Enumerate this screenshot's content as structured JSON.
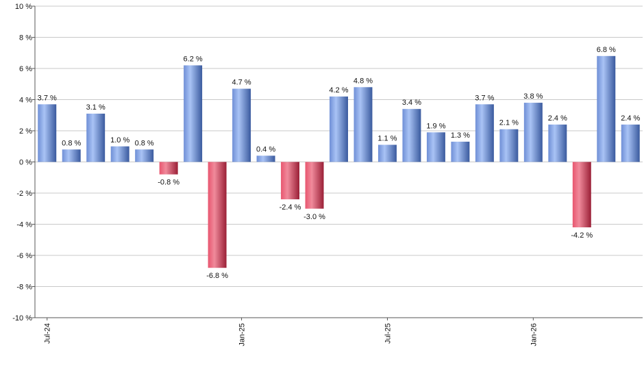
{
  "chart_data": {
    "type": "bar",
    "ylim": [
      -10,
      10
    ],
    "y_ticks": [
      10,
      8,
      6,
      4,
      2,
      0,
      -2,
      -4,
      -6,
      -8,
      -10
    ],
    "y_unit": "%",
    "grid": true,
    "x_tick_labels": [
      {
        "label": "Jul-24",
        "index": 0
      },
      {
        "label": "Jan-25",
        "index": 8
      },
      {
        "label": "Jul-25",
        "index": 14
      },
      {
        "label": "Jan-26",
        "index": 20
      }
    ],
    "values": [
      3.7,
      0.8,
      3.1,
      1.0,
      0.8,
      -0.8,
      6.2,
      -6.8,
      4.7,
      0.4,
      -2.4,
      -3.0,
      4.2,
      4.8,
      1.1,
      3.4,
      1.9,
      1.3,
      3.7,
      2.1,
      3.8,
      2.4,
      -4.2,
      6.8,
      2.4
    ],
    "labels": [
      "3.7 %",
      "0.8 %",
      "3.1 %",
      "1.0 %",
      "0.8 %",
      "-0.8 %",
      "6.2 %",
      "-6.8 %",
      "4.7 %",
      "0.4 %",
      "-2.4 %",
      "-3.0 %",
      "4.2 %",
      "4.8 %",
      "1.1 %",
      "3.4 %",
      "1.9 %",
      "1.3 %",
      "3.7 %",
      "2.1 %",
      "3.8 %",
      "2.4 %",
      "-4.2 %",
      "6.8 %",
      "2.4 %"
    ],
    "colors": {
      "positive": "#6f93db",
      "negative": "#d4405a"
    }
  }
}
